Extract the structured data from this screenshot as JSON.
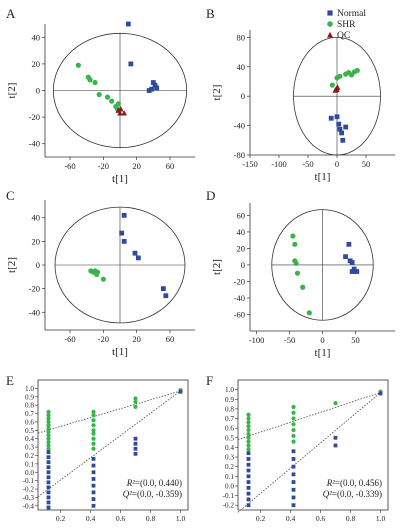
{
  "colors": {
    "normal": "#2f4a9c",
    "shr": "#3ab44a",
    "qc": "#8b1a1a",
    "axis": "#333333",
    "dotted": "#444444"
  },
  "legend": [
    {
      "label": "Normal",
      "marker": "square",
      "color": "#2f4a9c"
    },
    {
      "label": "SHR",
      "marker": "circle",
      "color": "#3ab44a"
    },
    {
      "label": "QC",
      "marker": "triangle",
      "color": "#8b1a1a"
    }
  ],
  "chart_data": [
    {
      "type": "scatter",
      "panel": "A",
      "xlabel": "t[1]",
      "ylabel": "t[2]",
      "xlim": [
        -90,
        90
      ],
      "ylim": [
        -50,
        50
      ],
      "xticks": [
        -60,
        -20,
        20,
        60
      ],
      "yticks": [
        -40,
        -20,
        0,
        20,
        40
      ],
      "ellipse": {
        "rx": 80,
        "ry": 43
      },
      "series": [
        {
          "name": "Normal",
          "marker": "square",
          "points": [
            [
              10,
              50
            ],
            [
              13,
              20
            ],
            [
              40,
              6
            ],
            [
              42,
              4
            ],
            [
              44,
              2
            ],
            [
              38,
              1
            ],
            [
              35,
              0
            ]
          ]
        },
        {
          "name": "SHR",
          "marker": "circle",
          "points": [
            [
              -50,
              19
            ],
            [
              -38,
              10
            ],
            [
              -36,
              8
            ],
            [
              -30,
              6
            ],
            [
              -25,
              -3
            ],
            [
              -15,
              -5
            ],
            [
              -10,
              -8
            ],
            [
              -5,
              -12
            ],
            [
              -3,
              -14
            ],
            [
              -2,
              -10
            ]
          ]
        },
        {
          "name": "QC",
          "marker": "triangle",
          "points": [
            [
              -2,
              -15
            ],
            [
              1,
              -14
            ],
            [
              0,
              -17
            ],
            [
              5,
              -17
            ]
          ]
        }
      ]
    },
    {
      "type": "scatter",
      "panel": "B",
      "xlabel": "t[1]",
      "ylabel": "t[2]",
      "xlim": [
        -150,
        100
      ],
      "ylim": [
        -80,
        90
      ],
      "xticks": [
        -150,
        -100,
        -50,
        0,
        50
      ],
      "yticks": [
        -80,
        -40,
        0,
        40,
        80
      ],
      "ellipse": {
        "rx": 75,
        "ry": 80
      },
      "series": [
        {
          "name": "Normal",
          "marker": "square",
          "points": [
            [
              -10,
              -30
            ],
            [
              0,
              -28
            ],
            [
              3,
              -38
            ],
            [
              5,
              -45
            ],
            [
              8,
              -50
            ],
            [
              10,
              -60
            ],
            [
              15,
              -42
            ]
          ]
        },
        {
          "name": "SHR",
          "marker": "circle",
          "points": [
            [
              -8,
              15
            ],
            [
              0,
              25
            ],
            [
              5,
              27
            ],
            [
              15,
              30
            ],
            [
              20,
              32
            ],
            [
              25,
              29
            ],
            [
              30,
              33
            ],
            [
              35,
              35
            ]
          ]
        },
        {
          "name": "QC",
          "marker": "triangle",
          "points": [
            [
              -3,
              8
            ],
            [
              -1,
              10
            ],
            [
              1,
              12
            ],
            [
              0,
              9
            ]
          ]
        }
      ]
    },
    {
      "type": "scatter",
      "panel": "C",
      "xlabel": "t[1]",
      "ylabel": "t[2]",
      "xlim": [
        -90,
        90
      ],
      "ylim": [
        -55,
        55
      ],
      "xticks": [
        -60,
        -20,
        20,
        60
      ],
      "yticks": [
        -40,
        -20,
        0,
        20,
        40
      ],
      "ellipse": {
        "rx": 78,
        "ry": 49
      },
      "series": [
        {
          "name": "Normal",
          "marker": "square",
          "points": [
            [
              5,
              42
            ],
            [
              2,
              27
            ],
            [
              5,
              20
            ],
            [
              18,
              10
            ],
            [
              22,
              6
            ],
            [
              52,
              -20
            ],
            [
              55,
              -26
            ]
          ]
        },
        {
          "name": "SHR",
          "marker": "circle",
          "points": [
            [
              -35,
              -5
            ],
            [
              -32,
              -6
            ],
            [
              -30,
              -5
            ],
            [
              -28,
              -8
            ],
            [
              -27,
              -6
            ],
            [
              -20,
              -12
            ]
          ]
        }
      ]
    },
    {
      "type": "scatter",
      "panel": "D",
      "xlabel": "t[1]",
      "ylabel": "t[2]",
      "xlim": [
        -110,
        110
      ],
      "ylim": [
        -80,
        75
      ],
      "xticks": [
        -100,
        -50,
        0,
        50
      ],
      "yticks": [
        -60,
        -40,
        -20,
        0,
        20,
        40,
        60
      ],
      "ellipse": {
        "rx": 77,
        "ry": 67
      },
      "series": [
        {
          "name": "Normal",
          "marker": "square",
          "points": [
            [
              40,
              25
            ],
            [
              35,
              10
            ],
            [
              42,
              5
            ],
            [
              45,
              3
            ],
            [
              48,
              -5
            ],
            [
              52,
              -8
            ],
            [
              45,
              -8
            ]
          ]
        },
        {
          "name": "SHR",
          "marker": "circle",
          "points": [
            [
              -45,
              35
            ],
            [
              -42,
              25
            ],
            [
              -42,
              5
            ],
            [
              -40,
              2
            ],
            [
              -38,
              -10
            ],
            [
              -30,
              -27
            ],
            [
              -20,
              -58
            ]
          ]
        }
      ]
    },
    {
      "type": "scatter",
      "panel": "E",
      "subtype": "permutation-test",
      "xlim": [
        0.05,
        1.05
      ],
      "ylim": [
        -0.45,
        1.1
      ],
      "xticks": [
        0.2,
        0.4,
        0.6,
        0.8,
        1.0
      ],
      "yticks": [
        -0.4,
        -0.3,
        -0.2,
        -0.1,
        0.0,
        0.1,
        0.2,
        0.3,
        0.4,
        0.5,
        0.6,
        0.7,
        0.8,
        0.9,
        1.0
      ],
      "r2_line": [
        [
          0.0,
          0.44
        ],
        [
          1.0,
          0.97
        ]
      ],
      "q2_line": [
        [
          0.0,
          -0.359
        ],
        [
          1.0,
          0.97
        ]
      ],
      "series": [
        {
          "name": "R2",
          "marker": "circle",
          "points": [
            [
              0.12,
              0.72
            ],
            [
              0.12,
              0.68
            ],
            [
              0.12,
              0.64
            ],
            [
              0.12,
              0.6
            ],
            [
              0.12,
              0.56
            ],
            [
              0.12,
              0.52
            ],
            [
              0.12,
              0.48
            ],
            [
              0.12,
              0.44
            ],
            [
              0.12,
              0.4
            ],
            [
              0.12,
              0.36
            ],
            [
              0.12,
              0.32
            ],
            [
              0.12,
              0.28
            ],
            [
              0.42,
              0.72
            ],
            [
              0.42,
              0.68
            ],
            [
              0.42,
              0.62
            ],
            [
              0.42,
              0.56
            ],
            [
              0.42,
              0.5
            ],
            [
              0.42,
              0.46
            ],
            [
              0.42,
              0.4
            ],
            [
              0.42,
              0.34
            ],
            [
              0.42,
              0.28
            ],
            [
              0.7,
              0.88
            ],
            [
              0.7,
              0.84
            ],
            [
              0.7,
              0.78
            ],
            [
              1.0,
              0.98
            ]
          ]
        },
        {
          "name": "Q2",
          "marker": "square",
          "points": [
            [
              0.12,
              0.24
            ],
            [
              0.12,
              0.18
            ],
            [
              0.12,
              0.12
            ],
            [
              0.12,
              0.06
            ],
            [
              0.12,
              0.0
            ],
            [
              0.12,
              -0.06
            ],
            [
              0.12,
              -0.12
            ],
            [
              0.12,
              -0.18
            ],
            [
              0.12,
              -0.24
            ],
            [
              0.12,
              -0.3
            ],
            [
              0.12,
              -0.36
            ],
            [
              0.12,
              -0.42
            ],
            [
              0.42,
              0.16
            ],
            [
              0.42,
              0.08
            ],
            [
              0.42,
              0.0
            ],
            [
              0.42,
              -0.08
            ],
            [
              0.42,
              -0.16
            ],
            [
              0.42,
              -0.24
            ],
            [
              0.42,
              -0.32
            ],
            [
              0.42,
              -0.4
            ],
            [
              0.7,
              0.4
            ],
            [
              0.7,
              0.34
            ],
            [
              0.7,
              0.28
            ],
            [
              0.7,
              0.22
            ],
            [
              1.0,
              0.96
            ]
          ]
        }
      ],
      "annotations": [
        {
          "lead": "R²",
          "value": "=(0.0, 0.440)"
        },
        {
          "lead": "Q²",
          "value": "=(0.0, -0.359)"
        }
      ]
    },
    {
      "type": "scatter",
      "panel": "F",
      "subtype": "permutation-test",
      "xlim": [
        0.05,
        1.05
      ],
      "ylim": [
        -0.25,
        1.1
      ],
      "xticks": [
        0.2,
        0.4,
        0.6,
        0.8,
        1.0
      ],
      "yticks": [
        -0.2,
        -0.1,
        0.0,
        0.1,
        0.2,
        0.3,
        0.4,
        0.5,
        0.6,
        0.7,
        0.8,
        0.9,
        1.0
      ],
      "r2_line": [
        [
          0.0,
          0.456
        ],
        [
          1.0,
          0.97
        ]
      ],
      "q2_line": [
        [
          0.0,
          -0.339
        ],
        [
          1.0,
          0.97
        ]
      ],
      "series": [
        {
          "name": "R2",
          "marker": "circle",
          "points": [
            [
              0.12,
              0.74
            ],
            [
              0.12,
              0.7
            ],
            [
              0.12,
              0.66
            ],
            [
              0.12,
              0.62
            ],
            [
              0.12,
              0.58
            ],
            [
              0.12,
              0.54
            ],
            [
              0.12,
              0.5
            ],
            [
              0.12,
              0.46
            ],
            [
              0.12,
              0.42
            ],
            [
              0.12,
              0.38
            ],
            [
              0.42,
              0.82
            ],
            [
              0.42,
              0.76
            ],
            [
              0.42,
              0.7
            ],
            [
              0.42,
              0.64
            ],
            [
              0.42,
              0.58
            ],
            [
              0.42,
              0.52
            ],
            [
              0.42,
              0.46
            ],
            [
              0.7,
              0.86
            ],
            [
              1.0,
              0.98
            ]
          ]
        },
        {
          "name": "Q2",
          "marker": "square",
          "points": [
            [
              0.12,
              0.34
            ],
            [
              0.12,
              0.28
            ],
            [
              0.12,
              0.22
            ],
            [
              0.12,
              0.16
            ],
            [
              0.12,
              0.1
            ],
            [
              0.12,
              0.04
            ],
            [
              0.12,
              -0.02
            ],
            [
              0.12,
              -0.08
            ],
            [
              0.12,
              -0.14
            ],
            [
              0.12,
              -0.2
            ],
            [
              0.42,
              0.36
            ],
            [
              0.42,
              0.28
            ],
            [
              0.42,
              0.2
            ],
            [
              0.42,
              0.12
            ],
            [
              0.42,
              0.04
            ],
            [
              0.42,
              -0.04
            ],
            [
              0.42,
              -0.12
            ],
            [
              0.42,
              -0.2
            ],
            [
              0.7,
              0.5
            ],
            [
              0.7,
              0.42
            ],
            [
              1.0,
              0.96
            ]
          ]
        }
      ],
      "annotations": [
        {
          "lead": "R²",
          "value": "=(0.0, 0.456)"
        },
        {
          "lead": "Q²",
          "value": "=(0.0, -0.339)"
        }
      ]
    }
  ]
}
